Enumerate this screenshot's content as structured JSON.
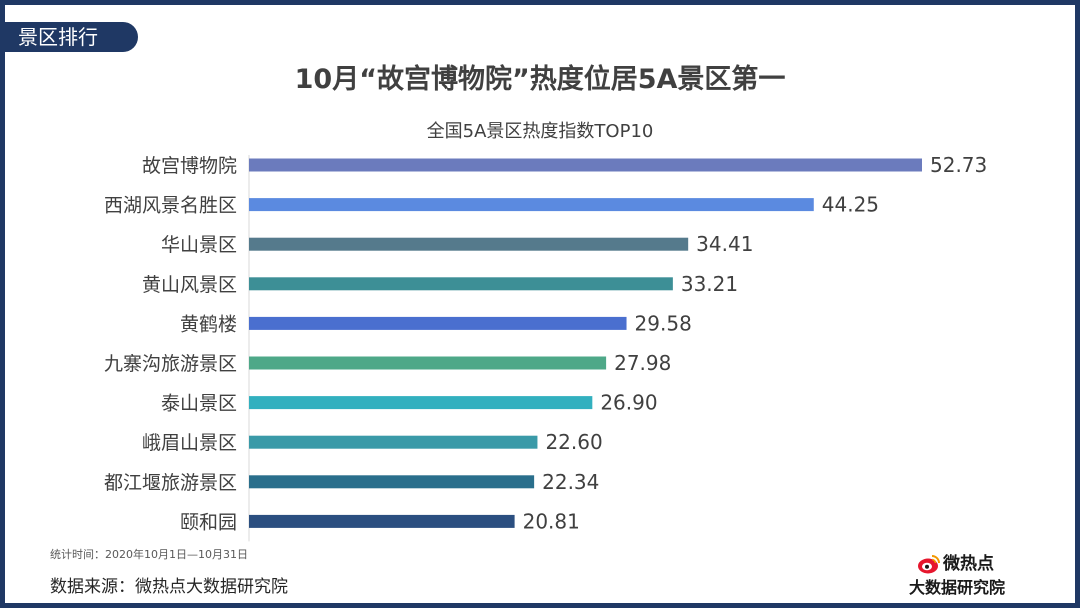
{
  "section_tag": "景区排行",
  "title": "10月“故宫博物院”热度位居5A景区第一",
  "subtitle": "全国5A景区热度指数TOP10",
  "footnote": "统计时间：2020年10月1日—10月31日",
  "source": "数据来源：微热点大数据研究院",
  "logo": {
    "top": "微热点",
    "bottom": "大数据研究院",
    "icon": "weibo-eye-icon"
  },
  "colors": {
    "frame": "#1f3864",
    "text": "#404040",
    "logo_red": "#e6162d"
  },
  "chart_data": {
    "type": "bar",
    "orientation": "horizontal",
    "categories": [
      "故宫博物院",
      "西湖风景名胜区",
      "华山景区",
      "黄山风景区",
      "黄鹤楼",
      "九寨沟旅游景区",
      "泰山景区",
      "峨眉山景区",
      "都江堰旅游景区",
      "颐和园"
    ],
    "values": [
      52.73,
      44.25,
      34.41,
      33.21,
      29.58,
      27.98,
      26.9,
      22.6,
      22.34,
      20.81
    ],
    "value_labels": [
      "52.73",
      "44.25",
      "34.41",
      "33.21",
      "29.58",
      "27.98",
      "26.90",
      "22.60",
      "22.34",
      "20.81"
    ],
    "bar_colors": [
      "#6b7bbd",
      "#5b8ae0",
      "#557a8c",
      "#3d8f96",
      "#4a6fcf",
      "#4ea888",
      "#32b0bf",
      "#3a9aa8",
      "#2a6f8c",
      "#2b4f80"
    ],
    "xlim": [
      0,
      55
    ],
    "grid": false,
    "legend": "none"
  }
}
